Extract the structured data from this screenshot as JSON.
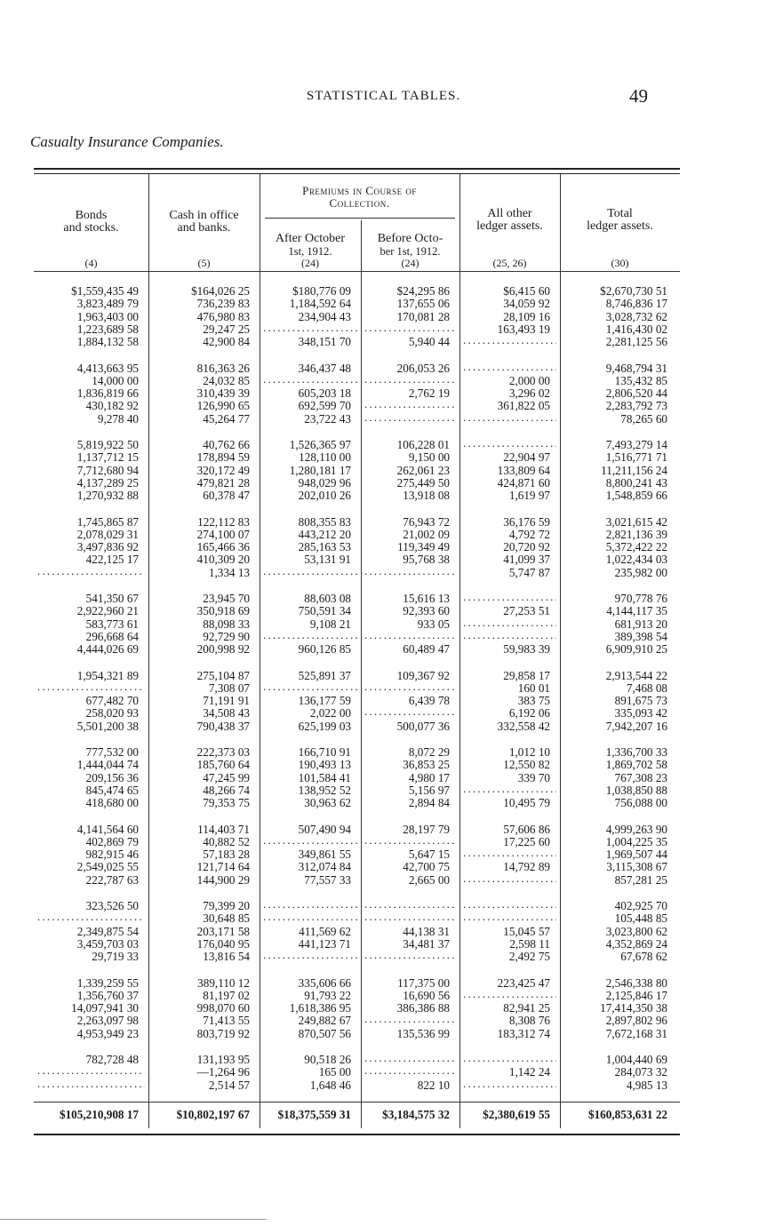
{
  "header": {
    "running_head": "STATISTICAL TABLES.",
    "page_number": "49",
    "section_title": "Casualty Insurance Companies."
  },
  "table": {
    "columns": [
      {
        "label": "Bonds and stocks.",
        "number": "(4)"
      },
      {
        "label": "Cash in office and banks.",
        "number": "(5)"
      },
      {
        "label": "After October 1st, 1912.",
        "number": "(24)"
      },
      {
        "label": "Before October 1st, 1912.",
        "number": "(24)"
      },
      {
        "label": "All other ledger assets.",
        "number": "(25, 26)"
      },
      {
        "label": "Total ledger assets.",
        "number": "(30)"
      }
    ],
    "header_lines": {
      "bonds_1": "Bonds",
      "bonds_2": "and stocks.",
      "cash_1": "Cash in office",
      "cash_2": "and banks.",
      "premiums_1": "Premiums in Course of",
      "premiums_2": "Collection.",
      "after_1": "After October",
      "after_2": "1st, 1912.",
      "before_1": "Before Octo-",
      "before_2": "ber 1st, 1912.",
      "other_1": "All other",
      "other_2": "ledger assets.",
      "total_1": "Total",
      "total_2": "ledger  assets."
    },
    "groups": [
      [
        [
          "$1,559,435 49",
          "$164,026 25",
          "$180,776 09",
          "$24,295 86",
          "$6,415 60",
          "$2,670,730 51"
        ],
        [
          "3,823,489 79",
          "736,239 83",
          "1,184,592 64",
          "137,655 06",
          "34,059 92",
          "8,746,836 17"
        ],
        [
          "1,963,403 00",
          "476,980 83",
          "234,904 43",
          "170,081 28",
          "28,109 16",
          "3,028,732 62"
        ],
        [
          "1,223,689 58",
          "29,247 25",
          "",
          "",
          "163,493 19",
          "1,416,430 02"
        ],
        [
          "1,884,132 58",
          "42,900 84",
          "348,151 70",
          "5,940 44",
          "",
          "2,281,125 56"
        ]
      ],
      [
        [
          "4,413,663 95",
          "816,363 26",
          "346,437 48",
          "206,053 26",
          "",
          "9,468,794 31"
        ],
        [
          "14,000 00",
          "24,032 85",
          "",
          "",
          "2,000 00",
          "135,432 85"
        ],
        [
          "1,836,819 66",
          "310,439 39",
          "605,203 18",
          "2,762 19",
          "3,296 02",
          "2,806,520 44"
        ],
        [
          "430,182 92",
          "126,990 65",
          "692,599 70",
          "",
          "361,822 05",
          "2,283,792 73"
        ],
        [
          "9,278 40",
          "45,264 77",
          "23,722 43",
          "",
          "",
          "78,265 60"
        ]
      ],
      [
        [
          "5,819,922 50",
          "40,762 66",
          "1,526,365 97",
          "106,228 01",
          "",
          "7,493,279 14"
        ],
        [
          "1,137,712 15",
          "178,894 59",
          "128,110 00",
          "9,150 00",
          "22,904 97",
          "1,516,771 71"
        ],
        [
          "7,712,680 94",
          "320,172 49",
          "1,280,181 17",
          "262,061 23",
          "133,809 64",
          "11,211,156 24"
        ],
        [
          "4,137,289 25",
          "479,821 28",
          "948,029 96",
          "275,449 50",
          "424,871 60",
          "8,800,241 43"
        ],
        [
          "1,270,932 88",
          "60,378 47",
          "202,010 26",
          "13,918 08",
          "1,619 97",
          "1,548,859 66"
        ]
      ],
      [
        [
          "1,745,865 87",
          "122,112 83",
          "808,355 83",
          "76,943 72",
          "36,176 59",
          "3,021,615 42"
        ],
        [
          "2,078,029 31",
          "274,100 07",
          "443,212 20",
          "21,002 09",
          "4,792 72",
          "2,821,136 39"
        ],
        [
          "3,497,836 92",
          "165,466 36",
          "285,163 53",
          "119,349 49",
          "20,720 92",
          "5,372,422 22"
        ],
        [
          "422,125 17",
          "410,309 20",
          "53,131 91",
          "95,768 38",
          "41,099 37",
          "1,022,434 03"
        ],
        [
          "",
          "1,334 13",
          "",
          "",
          "5,747 87",
          "235,982 00"
        ]
      ],
      [
        [
          "541,350 67",
          "23,945 70",
          "88,603 08",
          "15,616 13",
          "",
          "970,778 76"
        ],
        [
          "2,922,960 21",
          "350,918 69",
          "750,591 34",
          "92,393 60",
          "27,253 51",
          "4,144,117 35"
        ],
        [
          "583,773 61",
          "88,098 33",
          "9,108 21",
          "933 05",
          "",
          "681,913 20"
        ],
        [
          "296,668 64",
          "92,729 90",
          "",
          "",
          "",
          "389,398 54"
        ],
        [
          "4,444,026 69",
          "200,998 92",
          "960,126 85",
          "60,489 47",
          "59,983 39",
          "6,909,910 25"
        ]
      ],
      [
        [
          "1,954,321 89",
          "275,104 87",
          "525,891 37",
          "109,367 92",
          "29,858 17",
          "2,913,544 22"
        ],
        [
          "",
          "7,308 07",
          "",
          "",
          "160 01",
          "7,468 08"
        ],
        [
          "677,482 70",
          "71,191 91",
          "136,177 59",
          "6,439 78",
          "383 75",
          "891,675 73"
        ],
        [
          "258,020 93",
          "34,508 43",
          "2,022 00",
          "",
          "6,192 06",
          "335,093 42"
        ],
        [
          "5,501,200 38",
          "790,438 37",
          "625,199 03",
          "500,077 36",
          "332,558 42",
          "7,942,207 16"
        ]
      ],
      [
        [
          "777,532 00",
          "222,373 03",
          "166,710 91",
          "8,072 29",
          "1,012 10",
          "1,336,700 33"
        ],
        [
          "1,444,044 74",
          "185,760 64",
          "190,493 13",
          "36,853 25",
          "12,550 82",
          "1,869,702 58"
        ],
        [
          "209,156 36",
          "47,245 99",
          "101,584 41",
          "4,980 17",
          "339 70",
          "767,308 23"
        ],
        [
          "845,474 65",
          "48,266 74",
          "138,952 52",
          "5,156 97",
          "",
          "1,038,850 88"
        ],
        [
          "418,680 00",
          "79,353 75",
          "30,963 62",
          "2,894 84",
          "10,495 79",
          "756,088 00"
        ]
      ],
      [
        [
          "4,141,564 60",
          "114,403 71",
          "507,490 94",
          "28,197 79",
          "57,606 86",
          "4,999,263 90"
        ],
        [
          "402,869 79",
          "40,882 52",
          "",
          "",
          "17,225 60",
          "1,004,225 35"
        ],
        [
          "982,915 46",
          "57,183 28",
          "349,861 55",
          "5,647 15",
          "",
          "1,969,507 44"
        ],
        [
          "2,549,025 55",
          "121,714 64",
          "312,074 84",
          "42,700 75",
          "14,792 89",
          "3,115,308 67"
        ],
        [
          "222,787 63",
          "144,900 29",
          "77,557 33",
          "2,665 00",
          "",
          "857,281 25"
        ]
      ],
      [
        [
          "323,526 50",
          "79,399 20",
          "",
          "",
          "",
          "402,925 70"
        ],
        [
          "",
          "30,648 85",
          "",
          "",
          "",
          "105,448 85"
        ],
        [
          "2,349,875 54",
          "203,171 58",
          "411,569 62",
          "44,138 31",
          "15,045 57",
          "3,023,800 62"
        ],
        [
          "3,459,703 03",
          "176,040 95",
          "441,123 71",
          "34,481 37",
          "2,598 11",
          "4,352,869 24"
        ],
        [
          "29,719 33",
          "13,816 54",
          "",
          "",
          "2,492 75",
          "67,678 62"
        ]
      ],
      [
        [
          "1,339,259 55",
          "389,110 12",
          "335,606 66",
          "117,375 00",
          "223,425 47",
          "2,546,338 80"
        ],
        [
          "1,356,760 37",
          "81,197 02",
          "91,793 22",
          "16,690 56",
          "",
          "2,125,846 17"
        ],
        [
          "14,097,941 30",
          "998,070 60",
          "1,618,386 95",
          "386,386 88",
          "82,941 25",
          "17,414,350 38"
        ],
        [
          "2,263,097 98",
          "71,413 55",
          "249,882 67",
          "",
          "8,308 76",
          "2,897,802 96"
        ],
        [
          "4,953,949 23",
          "803,719 92",
          "870,507 56",
          "135,536 99",
          "183,312 74",
          "7,672,168 31"
        ]
      ],
      [
        [
          "782,728 48",
          "131,193 95",
          "90,518 26",
          "",
          "",
          "1,004,440 69"
        ],
        [
          "",
          "—1,264 96",
          "165 00",
          "",
          "1,142 24",
          "284,073 32"
        ],
        [
          "",
          "2,514 57",
          "1,648 46",
          "822 10",
          "",
          "4,985 13"
        ]
      ]
    ],
    "totals": [
      "$105,210,908 17",
      "$10,802,197 67",
      "$18,375,559 31",
      "$3,184,575 32",
      "$2,380,619 55",
      "$160,853,631 22"
    ]
  }
}
